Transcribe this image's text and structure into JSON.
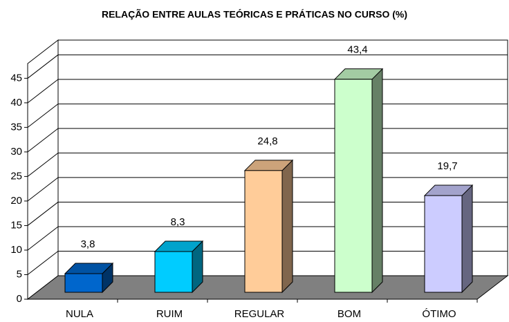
{
  "chart_data": {
    "type": "bar3d",
    "title": "RELAÇÃO ENTRE AULAS TEÓRICAS E PRÁTICAS NO CURSO (%)",
    "categories": [
      "NULA",
      "RUIM",
      "REGULAR",
      "BOM",
      "ÓTIMO"
    ],
    "values": [
      3.8,
      8.3,
      24.8,
      43.4,
      19.7
    ],
    "value_labels": [
      "3,8",
      "8,3",
      "24,8",
      "43,4",
      "19,7"
    ],
    "colors": [
      "#0066cc",
      "#00ccff",
      "#ffcc99",
      "#ccffcc",
      "#ccccff"
    ],
    "ylim": [
      0,
      48
    ],
    "yticks": [
      0,
      5,
      10,
      15,
      20,
      25,
      30,
      35,
      40,
      45
    ],
    "grid": true
  }
}
